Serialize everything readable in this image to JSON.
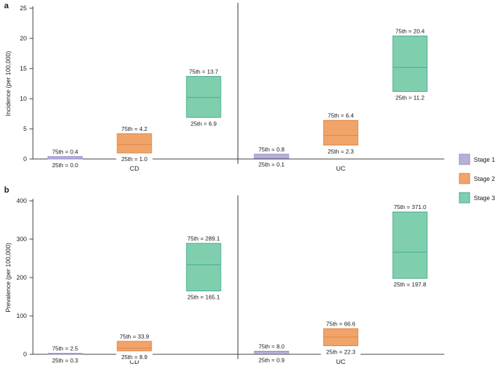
{
  "legend": {
    "position": "right",
    "items": [
      {
        "label": "Stage 1",
        "fill": "#b6b0d9",
        "border": "#958dc6"
      },
      {
        "label": "Stage 2",
        "fill": "#f1a46a",
        "border": "#dd8243"
      },
      {
        "label": "Stage 3",
        "fill": "#7fcfae",
        "border": "#45ab8c"
      }
    ]
  },
  "chart_data": [
    {
      "type": "bar",
      "subtype": "floating-percentile-range-box",
      "panel_label": "a",
      "ylabel": "Incidence (per 100,000)",
      "ylim": [
        0,
        25
      ],
      "yticks": [
        0,
        5,
        10,
        15,
        20,
        25
      ],
      "categories": [
        "CD",
        "UC"
      ],
      "grid": false,
      "series": [
        {
          "name": "Stage 1",
          "boxes": [
            {
              "category": "CD",
              "p25": 0.0,
              "p75": 0.4,
              "median": null,
              "p75_label": "75th = 0.4",
              "p25_label": "25th = 0.0"
            },
            {
              "category": "UC",
              "p25": 0.1,
              "p75": 0.8,
              "median": null,
              "p75_label": "75th = 0.8",
              "p25_label": "25th = 0.1"
            }
          ]
        },
        {
          "name": "Stage 2",
          "boxes": [
            {
              "category": "CD",
              "p25": 1.0,
              "p75": 4.2,
              "median": 2.4,
              "p75_label": "75th = 4.2",
              "p25_label": "25th = 1.0"
            },
            {
              "category": "UC",
              "p25": 2.3,
              "p75": 6.4,
              "median": 3.9,
              "p75_label": "75th = 6.4",
              "p25_label": "25th = 2.3"
            }
          ]
        },
        {
          "name": "Stage 3",
          "boxes": [
            {
              "category": "CD",
              "p25": 6.9,
              "p75": 13.7,
              "median": 10.2,
              "p75_label": "75th = 13.7",
              "p25_label": "25th = 6.9"
            },
            {
              "category": "UC",
              "p25": 11.2,
              "p75": 20.4,
              "median": 15.2,
              "p75_label": "75th = 20.4",
              "p25_label": "25th = 11.2"
            }
          ]
        }
      ]
    },
    {
      "type": "bar",
      "subtype": "floating-percentile-range-box",
      "panel_label": "b",
      "ylabel": "Prevalence (per 100,000)",
      "ylim": [
        0,
        400
      ],
      "yticks": [
        0,
        100,
        200,
        300,
        400
      ],
      "categories": [
        "CD",
        "UC"
      ],
      "grid": false,
      "series": [
        {
          "name": "Stage 1",
          "boxes": [
            {
              "category": "CD",
              "p25": 0.3,
              "p75": 2.5,
              "median": null,
              "p75_label": "75th = 2.5",
              "p25_label": "25th = 0.3"
            },
            {
              "category": "UC",
              "p25": 0.9,
              "p75": 8.0,
              "median": null,
              "p75_label": "75th = 8.0",
              "p25_label": "25th = 0.9"
            }
          ]
        },
        {
          "name": "Stage 2",
          "boxes": [
            {
              "category": "CD",
              "p25": 8.9,
              "p75": 33.9,
              "median": 16.0,
              "p75_label": "75th = 33.9",
              "p25_label": "25th = 8.9"
            },
            {
              "category": "UC",
              "p25": 22.3,
              "p75": 66.6,
              "median": 44.8,
              "p75_label": "75th = 66.6",
              "p25_label": "25th = 22.3"
            }
          ]
        },
        {
          "name": "Stage 3",
          "boxes": [
            {
              "category": "CD",
              "p25": 165.1,
              "p75": 289.1,
              "median": 233.0,
              "p75_label": "75th = 289.1",
              "p25_label": "25th = 165.1"
            },
            {
              "category": "UC",
              "p25": 197.8,
              "p75": 371.0,
              "median": 266.0,
              "p75_label": "75th = 371.0",
              "p25_label": "25th = 197.8"
            }
          ]
        }
      ]
    }
  ]
}
